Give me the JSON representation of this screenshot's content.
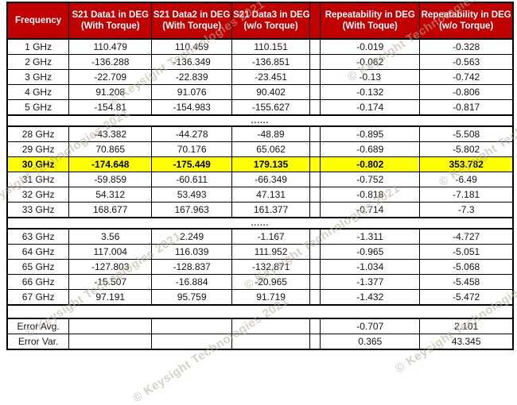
{
  "watermark": {
    "text": "© Keysight Technologies 2021"
  },
  "colors": {
    "header_bg": "#C00000",
    "header_text": "#FFFFFF",
    "highlight_bg": "#FFFF00",
    "alert_text": "#FF0000",
    "border": "#000000",
    "watermark": "#B8AC96"
  },
  "table": {
    "columns": [
      {
        "title": "Frequency",
        "subtitle": ""
      },
      {
        "title": "S21 Data1 in DEG",
        "subtitle": "(With Torque)"
      },
      {
        "title": "S21 Data2 in DEG",
        "subtitle": "(With Torque)"
      },
      {
        "title": "S21 Data3 in DEG",
        "subtitle": "(w/o Torque)"
      },
      {
        "title": "Repeatability in DEG",
        "subtitle": "(With Toque)"
      },
      {
        "title": "Repeatability in DEG",
        "subtitle": "(w/o Torque)"
      }
    ],
    "rows": [
      {
        "type": "data",
        "cells": [
          "1 GHz",
          "110.479",
          "110.459",
          "110.151",
          "-0.019",
          "-0.328"
        ]
      },
      {
        "type": "data",
        "cells": [
          "2 GHz",
          "-136.288",
          "-136.349",
          "-136.851",
          "-0.062",
          "-0.563"
        ]
      },
      {
        "type": "data",
        "cells": [
          "3 GHz",
          "-22.709",
          "-22.839",
          "-23.451",
          "-0.13",
          "-0.742"
        ]
      },
      {
        "type": "data",
        "cells": [
          "4 GHz",
          "91.208",
          "91.076",
          "90.402",
          "-0.132",
          "-0.806"
        ]
      },
      {
        "type": "data",
        "cells": [
          "5 GHz",
          "-154.81",
          "-154.983",
          "-155.627",
          "-0.174",
          "-0.817"
        ]
      },
      {
        "type": "ellipsis",
        "text": "......"
      },
      {
        "type": "data",
        "cells": [
          "28 GHz",
          "-43.382",
          "-44.278",
          "-48.89",
          "-0.895",
          "-5.508"
        ]
      },
      {
        "type": "data",
        "cells": [
          "29 GHz",
          "70.865",
          "70.176",
          "65.062",
          "-0.689",
          "-5.802"
        ]
      },
      {
        "type": "data",
        "highlight": true,
        "red_last": true,
        "cells": [
          "30 GHz",
          "-174.648",
          "-175.449",
          "179.135",
          "-0.802",
          "353.782"
        ]
      },
      {
        "type": "data",
        "cells": [
          "31 GHz",
          "-59.859",
          "-60.611",
          "-66.349",
          "-0.752",
          "-6.49"
        ]
      },
      {
        "type": "data",
        "cells": [
          "32 GHz",
          "54.312",
          "53.493",
          "47.131",
          "-0.818",
          "-7.181"
        ]
      },
      {
        "type": "data",
        "cells": [
          "33 GHz",
          "168.677",
          "167.963",
          "161.377",
          "-0.714",
          "-7.3"
        ]
      },
      {
        "type": "ellipsis",
        "text": "......"
      },
      {
        "type": "data",
        "cells": [
          "63 GHz",
          "3.56",
          "2.249",
          "-1.167",
          "-1.311",
          "-4.727"
        ]
      },
      {
        "type": "data",
        "cells": [
          "64 GHz",
          "117.004",
          "116.039",
          "111.952",
          "-0.965",
          "-5.051"
        ]
      },
      {
        "type": "data",
        "cells": [
          "65 GHz",
          "-127.803",
          "-128.837",
          "-132.871",
          "-1.034",
          "-5.068"
        ]
      },
      {
        "type": "data",
        "cells": [
          "66 GHz",
          "-15.507",
          "-16.884",
          "-20.965",
          "-1.377",
          "-5.458"
        ]
      },
      {
        "type": "data",
        "cells": [
          "67 GHz",
          "97.191",
          "95.759",
          "91.719",
          "-1.432",
          "-5.472"
        ]
      },
      {
        "type": "blank"
      },
      {
        "type": "error",
        "cells": [
          "Error Avg.",
          "",
          "",
          "",
          "-0.707",
          "2.101"
        ]
      },
      {
        "type": "error",
        "cells": [
          "Error Var.",
          "",
          "",
          "",
          "0.365",
          "43.345"
        ]
      }
    ]
  }
}
